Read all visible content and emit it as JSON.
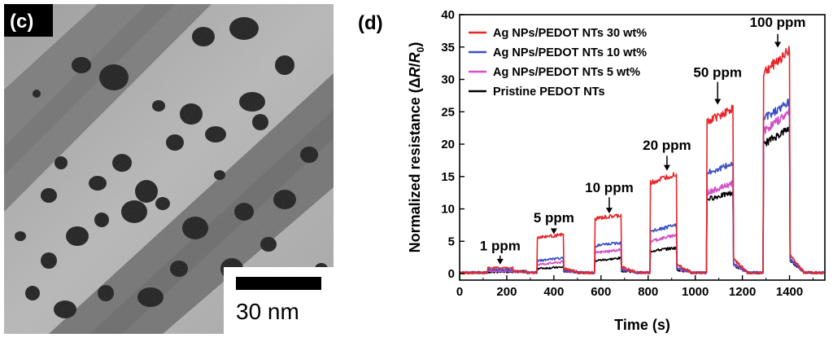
{
  "panel_c": {
    "label": "(c)",
    "scale_bar_text": "30 nm"
  },
  "panel_d": {
    "label": "(d)"
  },
  "chart_data": {
    "type": "line",
    "xlabel": "Time (s)",
    "ylabel": "Normalized resistance (ΔR/R0)",
    "ylabel_parts": {
      "prefix": "Normalized resistance (",
      "delta": "Δ",
      "R": "R",
      "slash": "/",
      "R0": "R",
      "sub": "0",
      "suffix": ")"
    },
    "xlim": [
      0,
      1550
    ],
    "ylim": [
      -1,
      40
    ],
    "xticks": [
      0,
      200,
      400,
      600,
      800,
      1000,
      1200,
      1400
    ],
    "yticks": [
      0,
      5,
      10,
      15,
      20,
      25,
      30,
      35,
      40
    ],
    "legend_position": "top-left",
    "pulses": [
      {
        "label": "1 ppm",
        "on": 120,
        "off": 225
      },
      {
        "label": "5 ppm",
        "on": 330,
        "off": 440
      },
      {
        "label": "10 ppm",
        "on": 575,
        "off": 685
      },
      {
        "label": "20 ppm",
        "on": 810,
        "off": 920
      },
      {
        "label": "50 ppm",
        "on": 1050,
        "off": 1160
      },
      {
        "label": "100 ppm",
        "on": 1290,
        "off": 1400
      }
    ],
    "series": [
      {
        "name": "Ag NPs/PEDOT NTs 30 wt%",
        "color": "#e8262a",
        "levels": [
          [
            0.9,
            0.9
          ],
          [
            5.6,
            6.0
          ],
          [
            8.5,
            9.0
          ],
          [
            14.0,
            15.5
          ],
          [
            23.5,
            25.5
          ],
          [
            31.0,
            34.5
          ]
        ]
      },
      {
        "name": "Ag NPs/PEDOT NTs 10 wt%",
        "color": "#3a4fc4",
        "levels": [
          [
            0.6,
            0.6
          ],
          [
            2.0,
            2.4
          ],
          [
            4.3,
            4.8
          ],
          [
            6.5,
            7.5
          ],
          [
            15.5,
            17.0
          ],
          [
            24.0,
            26.5
          ]
        ]
      },
      {
        "name": "Ag NPs/PEDOT NTs 5 wt%",
        "color": "#d24fc8",
        "levels": [
          [
            0.4,
            0.4
          ],
          [
            1.4,
            1.8
          ],
          [
            3.2,
            3.7
          ],
          [
            5.0,
            6.0
          ],
          [
            12.5,
            14.0
          ],
          [
            22.0,
            25.0
          ]
        ]
      },
      {
        "name": "Pristine PEDOT NTs",
        "color": "#000000",
        "levels": [
          [
            0.2,
            0.3
          ],
          [
            0.8,
            1.0
          ],
          [
            2.0,
            2.4
          ],
          [
            3.5,
            4.0
          ],
          [
            11.5,
            12.5
          ],
          [
            20.0,
            22.5
          ]
        ]
      }
    ]
  }
}
